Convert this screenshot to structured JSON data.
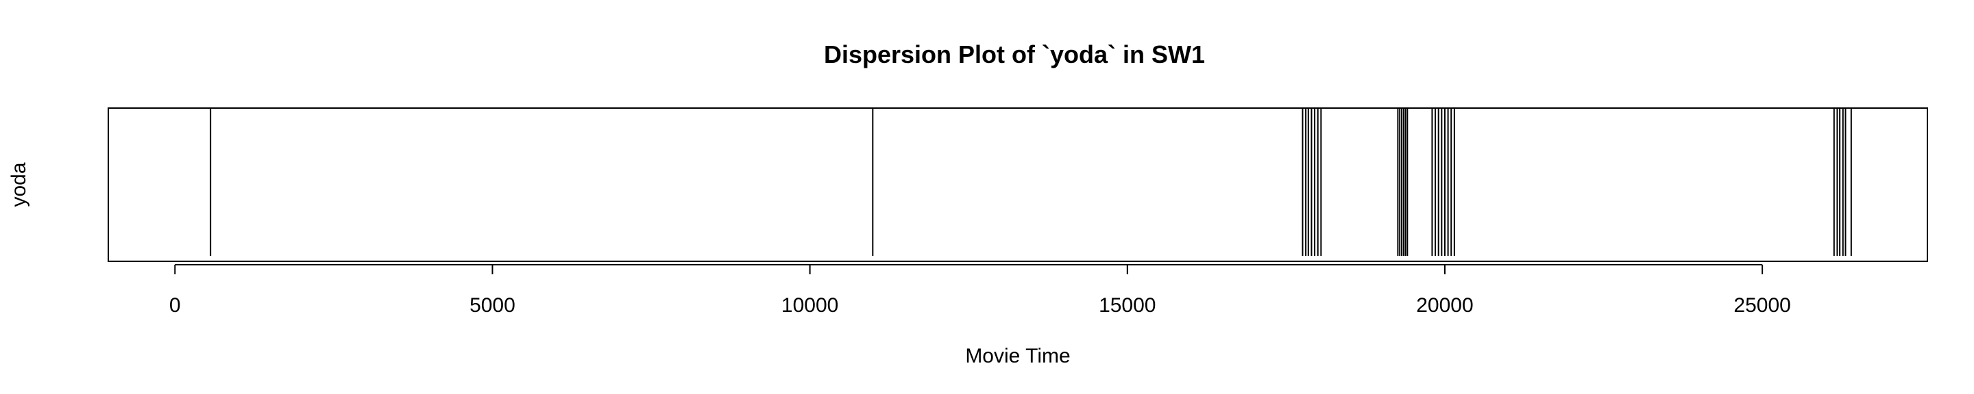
{
  "chart_data": {
    "type": "dispersion",
    "title": "Dispersion Plot of `yoda` in SW1",
    "xlabel": "Movie Time",
    "ylabel": "yoda",
    "xlim": [
      -1050,
      27600
    ],
    "xticks": [
      0,
      5000,
      10000,
      15000,
      20000,
      25000
    ],
    "grid": false,
    "events": [
      560,
      10990,
      17760,
      17810,
      17850,
      17900,
      17950,
      18000,
      18050,
      19260,
      19290,
      19320,
      19350,
      19380,
      19410,
      19800,
      19850,
      19900,
      19950,
      20000,
      20050,
      20100,
      20150,
      26130,
      26180,
      26220,
      26270,
      26310,
      26400
    ]
  }
}
